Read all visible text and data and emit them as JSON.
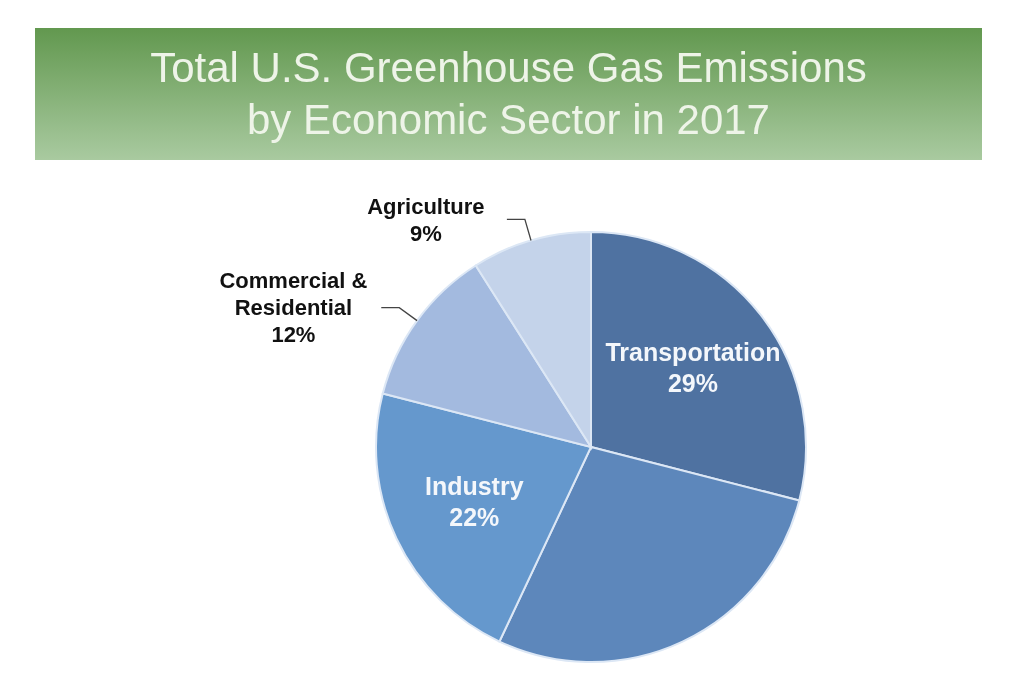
{
  "chart_data": {
    "type": "pie",
    "title": "Total U.S. Greenhouse Gas Emissions by Economic Sector in 2017",
    "categories": [
      "Transportation",
      null,
      "Industry",
      "Commercial & Residential",
      "Agriculture"
    ],
    "values": [
      29,
      28,
      22,
      12,
      9
    ],
    "colors": [
      "#4f72a1",
      "#5d87bb",
      "#6598cd",
      "#a3badf",
      "#c4d3ea"
    ],
    "value_labels": [
      "29%",
      null,
      "22%",
      "12%",
      "9%"
    ]
  }
}
